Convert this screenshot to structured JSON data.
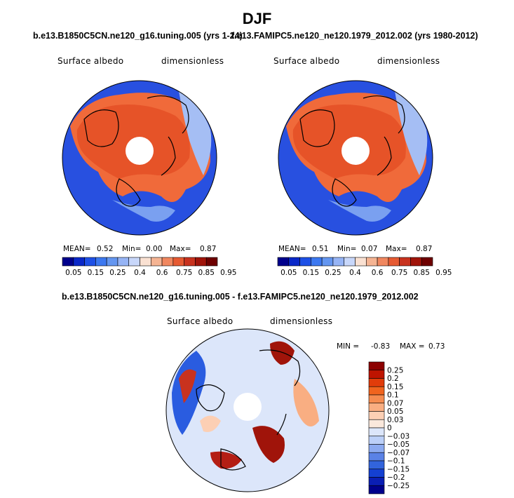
{
  "figure": {
    "title": "DJF",
    "diff_title": "b.e13.B1850C5CN.ne120_g16.tuning.005 - f.e13.FAMIPC5.ne120_ne120.1979_2012.002"
  },
  "chart_data": [
    {
      "type": "heatmap",
      "projection": "north-polar-stereographic",
      "title": "b.e13.B1850C5CN.ne120_g16.tuning.005 (yrs 1-24)",
      "variable": "Surface albedo",
      "units": "dimensionless",
      "stats": {
        "mean_label": "MEAN=",
        "mean": "0.52",
        "min_label": "Min=",
        "min": "0.00",
        "max_label": "Max=",
        "max": "0.87"
      },
      "colorbar": {
        "orientation": "horizontal",
        "levels": [
          "0.05",
          "0.15",
          "0.25",
          "0.4",
          "0.6",
          "0.75",
          "0.85",
          "0.95"
        ],
        "colors": [
          "#00008c",
          "#0a28c8",
          "#1e50e6",
          "#3c78f0",
          "#6496f0",
          "#96b4f5",
          "#c8d7fa",
          "#fae1d2",
          "#f5b493",
          "#f0875f",
          "#e65a32",
          "#c8321e",
          "#a0140a",
          "#6e0000"
        ]
      }
    },
    {
      "type": "heatmap",
      "projection": "north-polar-stereographic",
      "title": "f.e13.FAMIPC5.ne120_ne120.1979_2012.002 (yrs 1980-2012)",
      "variable": "Surface albedo",
      "units": "dimensionless",
      "stats": {
        "mean_label": "MEAN=",
        "mean": "0.51",
        "min_label": "Min=",
        "min": "0.07",
        "max_label": "Max=",
        "max": "0.87"
      },
      "colorbar": {
        "orientation": "horizontal",
        "levels": [
          "0.05",
          "0.15",
          "0.25",
          "0.4",
          "0.6",
          "0.75",
          "0.85",
          "0.95"
        ],
        "colors": [
          "#00008c",
          "#0a28c8",
          "#1e50e6",
          "#3c78f0",
          "#6496f0",
          "#96b4f5",
          "#c8d7fa",
          "#fae1d2",
          "#f5b493",
          "#f0875f",
          "#e65a32",
          "#c8321e",
          "#a0140a",
          "#6e0000"
        ]
      }
    },
    {
      "type": "heatmap",
      "projection": "north-polar-stereographic",
      "title": "b.e13.B1850C5CN.ne120_g16.tuning.005 - f.e13.FAMIPC5.ne120_ne120.1979_2012.002",
      "variable": "Surface albedo",
      "units": "dimensionless",
      "stats": {
        "min_label": "MIN =",
        "min": "-0.83",
        "max_label": "MAX =",
        "max": "0.73"
      },
      "colorbar": {
        "orientation": "vertical",
        "levels": [
          "0.25",
          "0.2",
          "0.15",
          "0.1",
          "0.07",
          "0.05",
          "0.03",
          "0",
          "−0.03",
          "−0.05",
          "−0.07",
          "−0.1",
          "−0.15",
          "−0.2",
          "−0.25"
        ],
        "colors": [
          "#8c0000",
          "#be1400",
          "#e13c0a",
          "#f0641e",
          "#f58c50",
          "#f9ae82",
          "#fccfb4",
          "#fae8dc",
          "#dce6fa",
          "#bcd0f8",
          "#8caaf0",
          "#5a82e6",
          "#3264dc",
          "#1440d2",
          "#0a1eb4",
          "#00008c"
        ]
      }
    }
  ]
}
